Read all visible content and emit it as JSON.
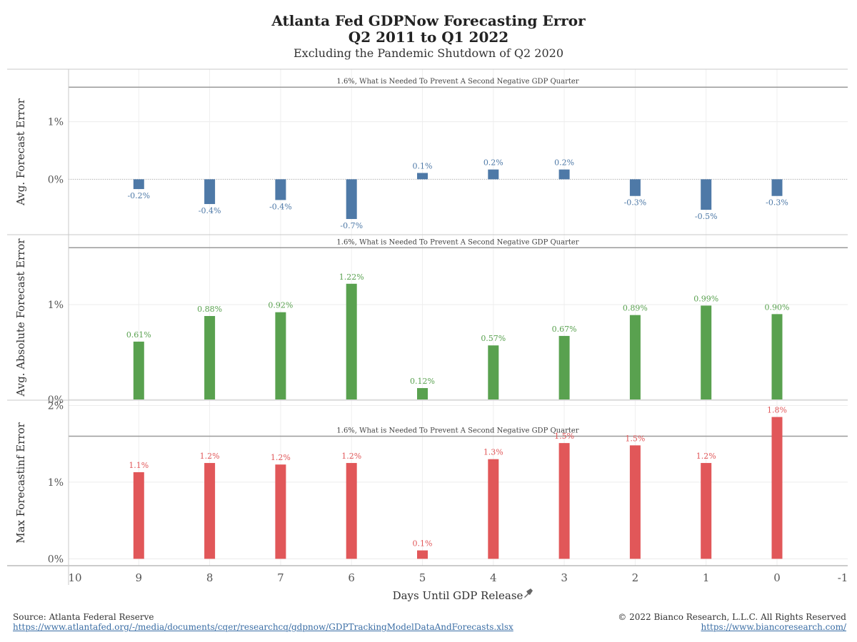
{
  "header": {
    "title_line1": "Atlanta Fed GDPNow Forecasting Error",
    "title_line2": "Q2 2011 to Q1 2022",
    "subtitle": "Excluding the Pandemic Shutdown of Q2 2020"
  },
  "chart_data": [
    {
      "type": "bar",
      "panel": "avg",
      "ylabel": "Avg. Forecast Error",
      "x": [
        9,
        8,
        7,
        6,
        5,
        4,
        3,
        2,
        1,
        0
      ],
      "values": [
        -0.17,
        -0.43,
        -0.36,
        -0.69,
        0.11,
        0.17,
        0.17,
        -0.29,
        -0.53,
        -0.29
      ],
      "data_labels": [
        "-0.2%",
        "-0.4%",
        "-0.4%",
        "-0.7%",
        "0.1%",
        "0.2%",
        "0.2%",
        "-0.3%",
        "-0.5%",
        "-0.3%"
      ],
      "yticks": [
        {
          "v": 1,
          "label": "1%"
        },
        {
          "v": 0,
          "label": "0%"
        }
      ],
      "ylim": [
        -0.95,
        1.9
      ],
      "reference_line": {
        "value": 1.6,
        "label": "1.6%, What is Needed To Prevent A Second Negative GDP Quarter"
      },
      "color": "#4e79a7"
    },
    {
      "type": "bar",
      "panel": "abs",
      "ylabel": "Avg. Absolute Forecast Error",
      "x": [
        9,
        8,
        7,
        6,
        5,
        4,
        3,
        2,
        1,
        0
      ],
      "values": [
        0.61,
        0.88,
        0.92,
        1.22,
        0.12,
        0.57,
        0.67,
        0.89,
        0.99,
        0.9
      ],
      "data_labels": [
        "0.61%",
        "0.88%",
        "0.92%",
        "1.22%",
        "0.12%",
        "0.57%",
        "0.67%",
        "0.89%",
        "0.99%",
        "0.90%"
      ],
      "yticks": [
        {
          "v": 1,
          "label": "1%"
        },
        {
          "v": 0,
          "label": "0%"
        }
      ],
      "ylim": [
        0,
        1.73
      ],
      "reference_line": {
        "value": 1.6,
        "label": "1.6%, What is Needed To Prevent A Second Negative GDP Quarter"
      },
      "color": "#59a14f"
    },
    {
      "type": "bar",
      "panel": "max",
      "ylabel": "Max Forecastinf Error",
      "x": [
        9,
        8,
        7,
        6,
        5,
        4,
        3,
        2,
        1,
        0
      ],
      "values": [
        1.13,
        1.25,
        1.23,
        1.25,
        0.11,
        1.3,
        1.51,
        1.48,
        1.25,
        1.85
      ],
      "data_labels": [
        "1.1%",
        "1.2%",
        "1.2%",
        "1.2%",
        "0.1%",
        "1.3%",
        "1.5%",
        "1.5%",
        "1.2%",
        "1.8%"
      ],
      "yticks": [
        {
          "v": 2,
          "label": "2%"
        },
        {
          "v": 1,
          "label": "1%"
        },
        {
          "v": 0,
          "label": "0%"
        }
      ],
      "ylim": [
        -0.08,
        2.06
      ],
      "reference_line": {
        "value": 1.6,
        "label": "1.6%, What is Needed To Prevent A Second Negative GDP Quarter"
      },
      "color": "#e15759"
    }
  ],
  "x_axis": {
    "label": "Days Until GDP Release",
    "ticks": [
      10,
      9,
      8,
      7,
      6,
      5,
      4,
      3,
      2,
      1,
      0,
      -1
    ],
    "pin_icon": "pin-icon"
  },
  "footer": {
    "source_label": "Source: Atlanta Federal Reserve",
    "source_url": "https://www.atlantafed.org/-/media/documents/cqer/researchcq/gdpnow/GDPTrackingModelDataAndForecasts.xlsx",
    "copyright": "© 2022 Bianco Research, L.L.C. All Rights Reserved",
    "site_url": "https://www.biancoresearch.com/"
  }
}
